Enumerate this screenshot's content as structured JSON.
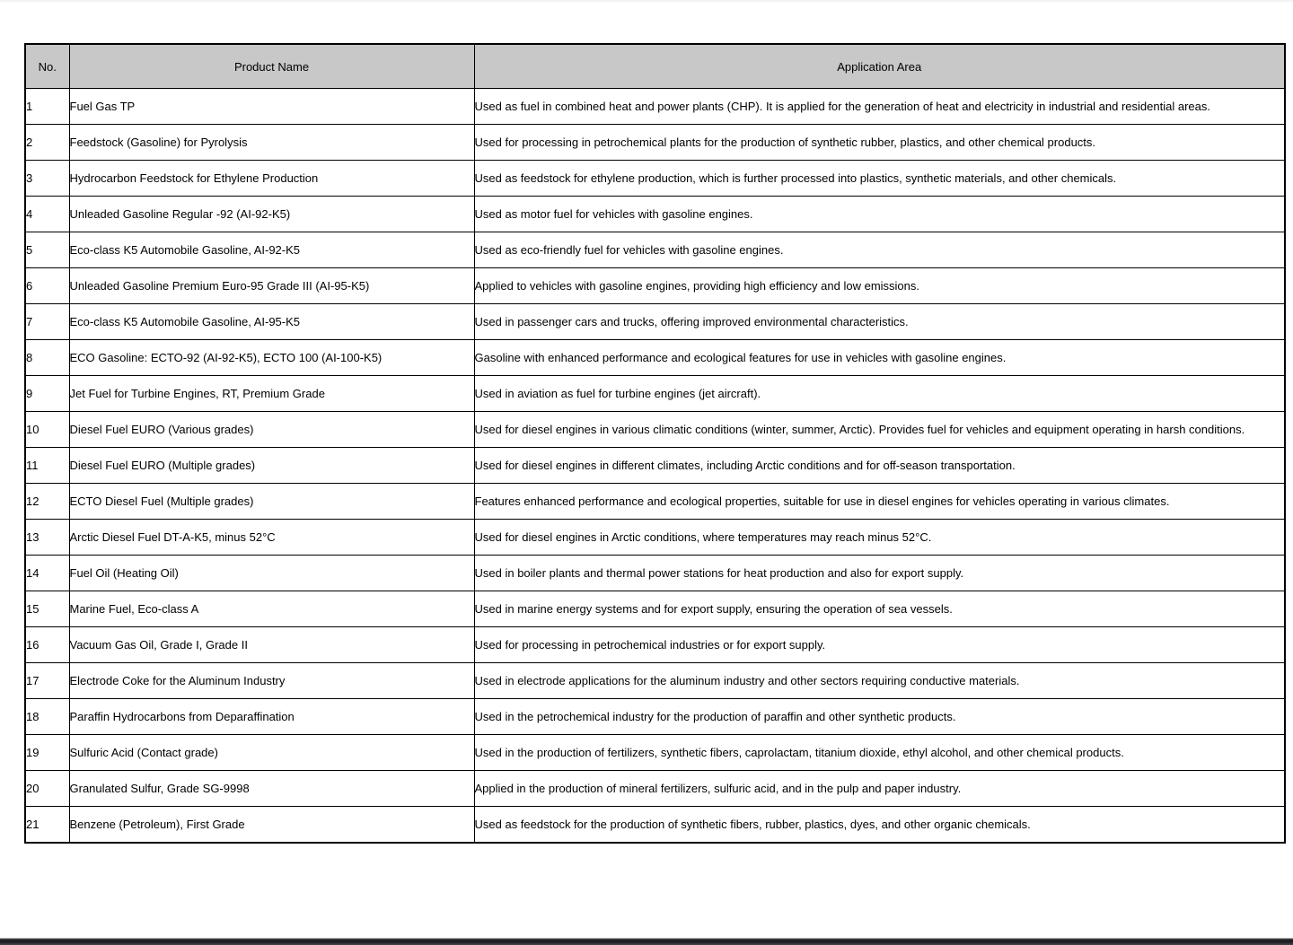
{
  "table": {
    "headers": {
      "no": "No.",
      "product_name": "Product Name",
      "application_area": "Application Area"
    },
    "rows": [
      {
        "no": "1",
        "product_name": "Fuel Gas TP",
        "application_area": "Used as fuel in combined heat and power plants (CHP). It is applied for the generation of heat and electricity in industrial and residential areas."
      },
      {
        "no": "2",
        "product_name": "Feedstock (Gasoline) for Pyrolysis",
        "application_area": "Used for processing in petrochemical plants for the production of synthetic rubber, plastics, and other chemical products."
      },
      {
        "no": "3",
        "product_name": "Hydrocarbon Feedstock for Ethylene Production",
        "application_area": "Used as feedstock for ethylene production, which is further processed into plastics, synthetic materials, and other chemicals."
      },
      {
        "no": "4",
        "product_name": "Unleaded Gasoline Regular -92 (AI-92-K5)",
        "application_area": "Used as motor fuel for vehicles with gasoline engines."
      },
      {
        "no": "5",
        "product_name": "Eco-class K5 Automobile Gasoline, AI-92-K5",
        "application_area": "Used as eco-friendly fuel for vehicles with gasoline engines."
      },
      {
        "no": "6",
        "product_name": "Unleaded Gasoline Premium Euro-95 Grade III (AI-95-K5)",
        "application_area": "Applied to vehicles with gasoline engines, providing high efficiency and low emissions."
      },
      {
        "no": "7",
        "product_name": "Eco-class K5 Automobile Gasoline, AI-95-K5",
        "application_area": "Used in passenger cars and trucks, offering improved environmental characteristics."
      },
      {
        "no": "8",
        "product_name": "ECO Gasoline: ECTO-92 (AI-92-K5), ECTO 100 (AI-100-K5)",
        "application_area": "Gasoline with enhanced performance and ecological features for use in vehicles with gasoline engines."
      },
      {
        "no": "9",
        "product_name": "Jet Fuel for Turbine Engines, RT, Premium Grade",
        "application_area": "Used in aviation as fuel for turbine engines (jet aircraft)."
      },
      {
        "no": "10",
        "product_name": "Diesel Fuel EURO (Various grades)",
        "application_area": "Used for diesel engines in various climatic conditions (winter, summer, Arctic). Provides fuel for vehicles and equipment operating in harsh conditions."
      },
      {
        "no": "11",
        "product_name": "Diesel Fuel EURO (Multiple grades)",
        "application_area": "Used for diesel engines in different climates, including Arctic conditions and for off-season transportation."
      },
      {
        "no": "12",
        "product_name": "ECTO Diesel Fuel (Multiple grades)",
        "application_area": "Features enhanced performance and ecological properties, suitable for use in diesel engines for vehicles operating in various climates."
      },
      {
        "no": "13",
        "product_name": "Arctic Diesel Fuel DT-A-K5, minus 52°C",
        "application_area": "Used for diesel engines in Arctic conditions, where temperatures may reach minus 52°C."
      },
      {
        "no": "14",
        "product_name": "Fuel Oil (Heating Oil)",
        "application_area": "Used in boiler plants and thermal power stations for heat production and also for export supply."
      },
      {
        "no": "15",
        "product_name": "Marine Fuel, Eco-class A",
        "application_area": "Used in marine energy systems and for export supply, ensuring the operation of sea vessels."
      },
      {
        "no": "16",
        "product_name": "Vacuum Gas Oil, Grade I, Grade II",
        "application_area": "Used for processing in petrochemical industries or for export supply."
      },
      {
        "no": "17",
        "product_name": "Electrode Coke for the Aluminum Industry",
        "application_area": "Used in electrode applications for the aluminum industry and other sectors requiring conductive materials."
      },
      {
        "no": "18",
        "product_name": "Paraffin Hydrocarbons from Deparaffination",
        "application_area": "Used in the petrochemical industry for the production of paraffin and other synthetic products."
      },
      {
        "no": "19",
        "product_name": "Sulfuric Acid (Contact grade)",
        "application_area": "Used in the production of fertilizers, synthetic fibers, caprolactam, titanium dioxide, ethyl alcohol, and other chemical products."
      },
      {
        "no": "20",
        "product_name": "Granulated Sulfur, Grade SG-9998",
        "application_area": "Applied in the production of mineral fertilizers, sulfuric acid, and in the pulp and paper industry."
      },
      {
        "no": "21",
        "product_name": "Benzene (Petroleum), First Grade",
        "application_area": "Used as feedstock for the production of synthetic fibers, rubber, plastics, dyes, and other organic chemicals."
      }
    ],
    "colors": {
      "header_background": "#c8c8c8",
      "border": "#000000",
      "bottom_bar": "#1d1d20"
    }
  }
}
